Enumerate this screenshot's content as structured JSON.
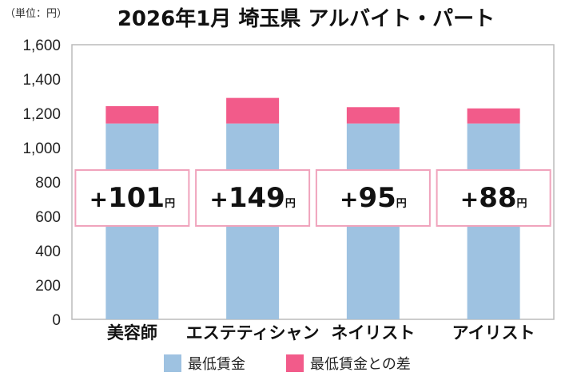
{
  "chart_data": {
    "type": "bar",
    "stacked": true,
    "title": "2026年1月 埼玉県 アルバイト・パート",
    "unit_label": "（単位：円）",
    "categories": [
      "美容師",
      "エステティシャン",
      "ネイリスト",
      "アイリスト"
    ],
    "series": [
      {
        "name": "最低賃金",
        "values": [
          1141,
          1141,
          1141,
          1141
        ]
      },
      {
        "name": "最低賃金との差",
        "values": [
          101,
          149,
          95,
          88
        ]
      }
    ],
    "difference_labels": [
      {
        "sign": "+",
        "number": "101",
        "unit": "円"
      },
      {
        "sign": "+",
        "number": "149",
        "unit": "円"
      },
      {
        "sign": "+",
        "number": "95",
        "unit": "円"
      },
      {
        "sign": "+",
        "number": "88",
        "unit": "円"
      }
    ],
    "ylim": [
      0,
      1600
    ],
    "yticks": [
      "0",
      "200",
      "400",
      "600",
      "800",
      "1,000",
      "1,200",
      "1,400",
      "1,600"
    ],
    "colors": {
      "base": "#9ec2e1",
      "diff": "#f25b8a",
      "label_border": "#f0a3bc",
      "frame": "#bbbbbb"
    },
    "legend_position": "bottom"
  }
}
